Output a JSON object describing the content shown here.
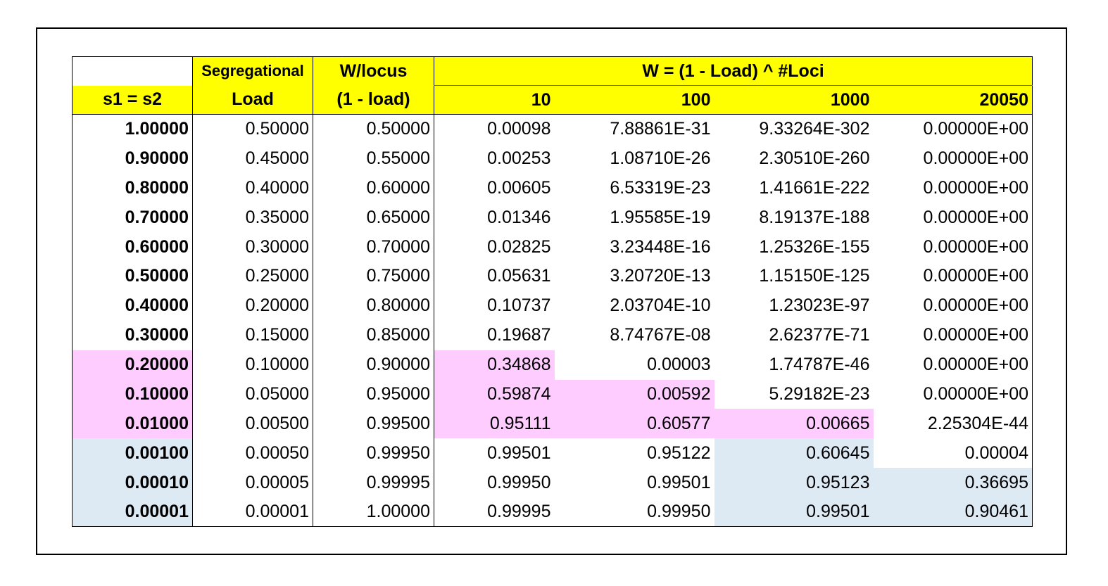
{
  "header": {
    "col1_top": "",
    "col1": "s1 = s2",
    "col2_top": "Segregational",
    "col2": "Load",
    "col3_top": "W/locus",
    "col3": "(1 - load)",
    "group": "W = (1 - Load) ^ #Loci",
    "loci": [
      "10",
      "100",
      "1000",
      "20050"
    ]
  },
  "rows": [
    {
      "s": "1.00000",
      "load": "0.50000",
      "w": "0.50000",
      "v": [
        "0.00098",
        "7.88861E-31",
        "9.33264E-302",
        "0.00000E+00"
      ]
    },
    {
      "s": "0.90000",
      "load": "0.45000",
      "w": "0.55000",
      "v": [
        "0.00253",
        "1.08710E-26",
        "2.30510E-260",
        "0.00000E+00"
      ]
    },
    {
      "s": "0.80000",
      "load": "0.40000",
      "w": "0.60000",
      "v": [
        "0.00605",
        "6.53319E-23",
        "1.41661E-222",
        "0.00000E+00"
      ]
    },
    {
      "s": "0.70000",
      "load": "0.35000",
      "w": "0.65000",
      "v": [
        "0.01346",
        "1.95585E-19",
        "8.19137E-188",
        "0.00000E+00"
      ]
    },
    {
      "s": "0.60000",
      "load": "0.30000",
      "w": "0.70000",
      "v": [
        "0.02825",
        "3.23448E-16",
        "1.25326E-155",
        "0.00000E+00"
      ]
    },
    {
      "s": "0.50000",
      "load": "0.25000",
      "w": "0.75000",
      "v": [
        "0.05631",
        "3.20720E-13",
        "1.15150E-125",
        "0.00000E+00"
      ]
    },
    {
      "s": "0.40000",
      "load": "0.20000",
      "w": "0.80000",
      "v": [
        "0.10737",
        "2.03704E-10",
        "1.23023E-97",
        "0.00000E+00"
      ]
    },
    {
      "s": "0.30000",
      "load": "0.15000",
      "w": "0.85000",
      "v": [
        "0.19687",
        "8.74767E-08",
        "2.62377E-71",
        "0.00000E+00"
      ]
    },
    {
      "s": "0.20000",
      "load": "0.10000",
      "w": "0.90000",
      "v": [
        "0.34868",
        "0.00003",
        "1.74787E-46",
        "0.00000E+00"
      ]
    },
    {
      "s": "0.10000",
      "load": "0.05000",
      "w": "0.95000",
      "v": [
        "0.59874",
        "0.00592",
        "5.29182E-23",
        "0.00000E+00"
      ]
    },
    {
      "s": "0.01000",
      "load": "0.00500",
      "w": "0.99500",
      "v": [
        "0.95111",
        "0.60577",
        "0.00665",
        "2.25304E-44"
      ]
    },
    {
      "s": "0.00100",
      "load": "0.00050",
      "w": "0.99950",
      "v": [
        "0.99501",
        "0.95122",
        "0.60645",
        "0.00004"
      ]
    },
    {
      "s": "0.00010",
      "load": "0.00005",
      "w": "0.99995",
      "v": [
        "0.99950",
        "0.99501",
        "0.95123",
        "0.36695"
      ]
    },
    {
      "s": "0.00001",
      "load": "0.00001",
      "w": "1.00000",
      "v": [
        "0.99995",
        "0.99950",
        "0.99501",
        "0.90461"
      ]
    }
  ],
  "colors": {
    "header_fill": "#ffff00",
    "pink_fill": "#ffccff",
    "blue_fill": "#dde9f3"
  }
}
